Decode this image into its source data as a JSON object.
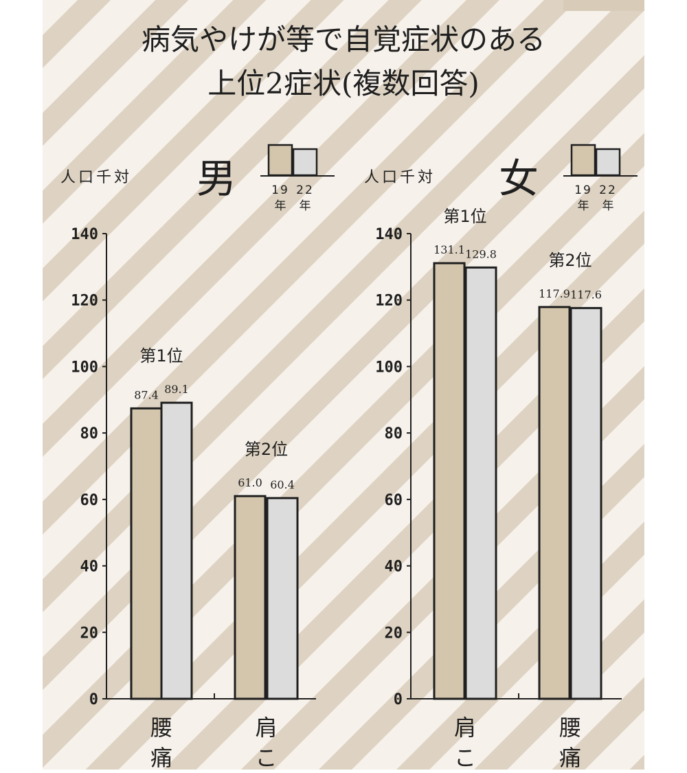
{
  "title": {
    "line1": "病気やけが等で自覚症状のある",
    "line2": "上位2症状(複数回答)"
  },
  "colors": {
    "stripe_light": "#f6f1eb",
    "stripe_dark": "#ded3c2",
    "bar_2019": "#d4c6ac",
    "bar_2022": "#dcdcdc",
    "ink": "#1f1f1f"
  },
  "chart_data": [
    {
      "type": "bar",
      "panel_title": "男",
      "unit_label": "人口千対",
      "legend": [
        {
          "year": "19",
          "suffix": "年",
          "color": "#d4c6ac"
        },
        {
          "year": "22",
          "suffix": "年",
          "color": "#dcdcdc"
        }
      ],
      "ylim": [
        0,
        140
      ],
      "yticks": [
        0,
        20,
        40,
        60,
        80,
        100,
        120,
        140
      ],
      "categories": [
        "腰痛",
        "肩こ"
      ],
      "category_label_lines": [
        [
          "腰",
          "痛"
        ],
        [
          "肩",
          "こ"
        ]
      ],
      "ranks": [
        "第1位",
        "第2位"
      ],
      "series": [
        {
          "values": [
            87.4,
            61.0
          ],
          "labels": [
            "87.4",
            "61.0"
          ]
        },
        {
          "values": [
            89.1,
            60.4
          ],
          "labels": [
            "89.1",
            "60.4"
          ]
        }
      ]
    },
    {
      "type": "bar",
      "panel_title": "女",
      "unit_label": "人口千対",
      "legend": [
        {
          "year": "19",
          "suffix": "年",
          "color": "#d4c6ac"
        },
        {
          "year": "22",
          "suffix": "年",
          "color": "#dcdcdc"
        }
      ],
      "ylim": [
        0,
        140
      ],
      "yticks": [
        0,
        20,
        40,
        60,
        80,
        100,
        120,
        140
      ],
      "categories": [
        "肩こ",
        "腰痛"
      ],
      "category_label_lines": [
        [
          "肩",
          "こ"
        ],
        [
          "腰",
          "痛"
        ]
      ],
      "ranks": [
        "第1位",
        "第2位"
      ],
      "series": [
        {
          "values": [
            131.1,
            117.9
          ],
          "labels": [
            "131.1",
            "117.9"
          ]
        },
        {
          "values": [
            129.8,
            117.6
          ],
          "labels": [
            "129.8",
            "117.6"
          ]
        }
      ]
    }
  ]
}
